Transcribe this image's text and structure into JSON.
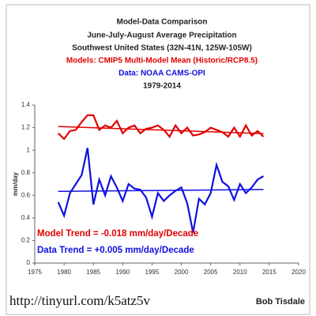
{
  "chart_data": {
    "type": "line",
    "title": "Model-Data Comparison",
    "subtitle": "June-July-August Average Precipitation",
    "region": "Southwest United States (32N-41N, 125W-105W)",
    "models_label": "Models: CMIP5 Multi-Model Mean (Historic/RCP8.5)",
    "data_label": "Data: NOAA CAMS-OPI",
    "period": "1979-2014",
    "y_label": "mm/day",
    "x": [
      1979,
      1980,
      1981,
      1982,
      1983,
      1984,
      1985,
      1986,
      1987,
      1988,
      1989,
      1990,
      1991,
      1992,
      1993,
      1994,
      1995,
      1996,
      1997,
      1998,
      1999,
      2000,
      2001,
      2002,
      2003,
      2004,
      2005,
      2006,
      2007,
      2008,
      2009,
      2010,
      2011,
      2012,
      2013,
      2014
    ],
    "series": [
      {
        "color": "#e00000",
        "values": [
          1.15,
          1.1,
          1.17,
          1.18,
          1.25,
          1.31,
          1.31,
          1.18,
          1.22,
          1.2,
          1.26,
          1.15,
          1.2,
          1.22,
          1.15,
          1.19,
          1.2,
          1.22,
          1.18,
          1.12,
          1.22,
          1.15,
          1.2,
          1.13,
          1.14,
          1.16,
          1.2,
          1.18,
          1.16,
          1.12,
          1.2,
          1.12,
          1.22,
          1.13,
          1.17,
          1.12
        ],
        "trend": {
          "x": [
            1979,
            2014
          ],
          "values": [
            1.21,
            1.147
          ]
        }
      },
      {
        "color": "#1010e0",
        "values": [
          0.54,
          0.42,
          0.62,
          0.7,
          0.78,
          1.02,
          0.52,
          0.74,
          0.6,
          0.77,
          0.67,
          0.55,
          0.7,
          0.66,
          0.65,
          0.58,
          0.41,
          0.62,
          0.55,
          0.6,
          0.64,
          0.67,
          0.53,
          0.27,
          0.57,
          0.52,
          0.62,
          0.87,
          0.72,
          0.68,
          0.56,
          0.7,
          0.62,
          0.67,
          0.74,
          0.77
        ],
        "trend": {
          "x": [
            1979,
            2014
          ],
          "values": [
            0.635,
            0.652
          ]
        }
      }
    ],
    "annotations": [
      {
        "text": "Model Trend = -0.018 mm/day/Decade",
        "color": "#e00000"
      },
      {
        "text": "Data Trend = +0.005 mm/day/Decade",
        "color": "#1010e0"
      }
    ],
    "xlim": [
      1975,
      2020
    ],
    "xticks": [
      1975,
      1980,
      1985,
      1990,
      1995,
      2000,
      2005,
      2010,
      2015,
      2020
    ],
    "ylim": [
      0,
      1.4
    ],
    "yticks": [
      0,
      0.2,
      0.4,
      0.6,
      0.8,
      1,
      1.2,
      1.4
    ],
    "grid": false,
    "url": "http://tinyurl.com/k5atz5v",
    "author": "Bob Tisdale"
  }
}
